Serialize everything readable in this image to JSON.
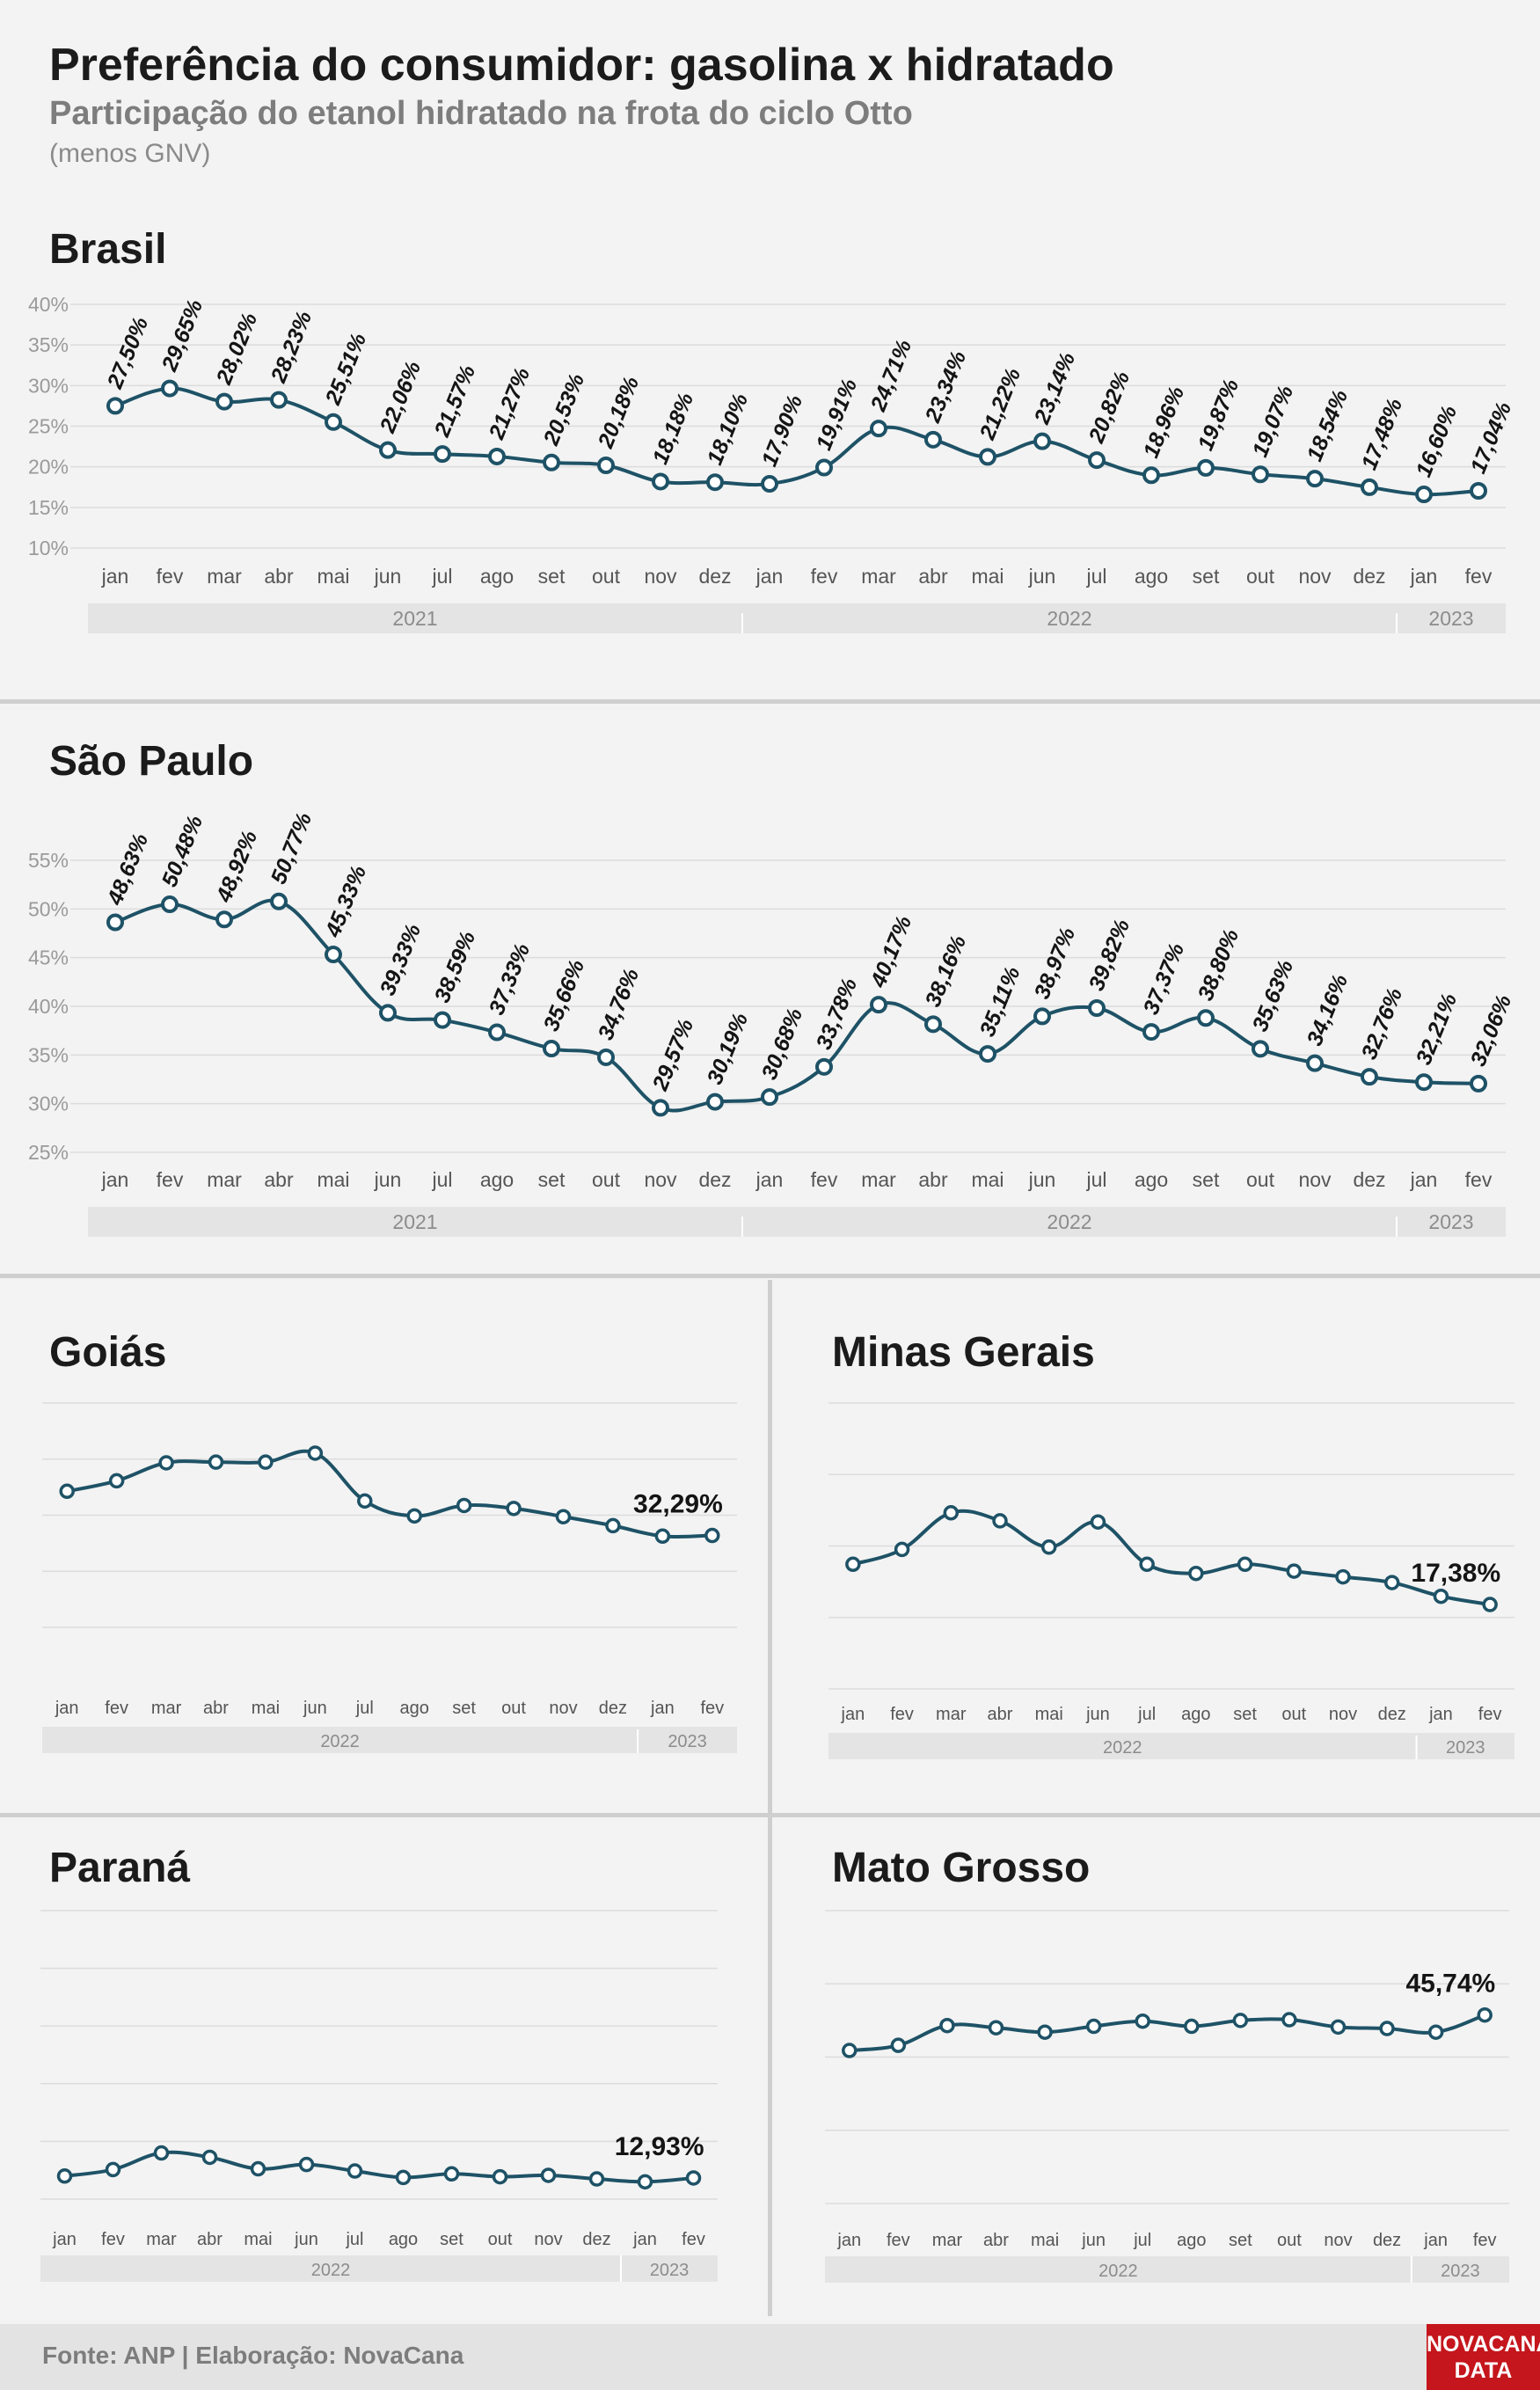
{
  "header": {
    "title": "Preferência do consumidor: gasolina x hidratado",
    "subtitle": "Participação do etanol hidratado na frota do ciclo Otto",
    "note": "(menos GNV)"
  },
  "footer": {
    "source": "Fonte: ANP | Elaboração: NovaCana",
    "logo_line1": "NOVACANA",
    "logo_line2": "DATA"
  },
  "colors": {
    "line": "#1e5266",
    "point_fill": "#ffffff",
    "grid": "#dcdcdc",
    "year_band": "#e4e4e4",
    "background": "#f3f3f3",
    "logo": "#c4161c"
  },
  "chart_data": [
    {
      "id": "brasil",
      "type": "line",
      "title": "Brasil",
      "x": [
        "jan",
        "fev",
        "mar",
        "abr",
        "mai",
        "jun",
        "jul",
        "ago",
        "set",
        "out",
        "nov",
        "dez",
        "jan",
        "fev",
        "mar",
        "abr",
        "mai",
        "jun",
        "jul",
        "ago",
        "set",
        "out",
        "nov",
        "dez",
        "jan",
        "fev"
      ],
      "years": [
        {
          "label": "2021",
          "count": 12
        },
        {
          "label": "2022",
          "count": 12
        },
        {
          "label": "2023",
          "count": 2
        }
      ],
      "values": [
        27.5,
        29.65,
        28.02,
        28.23,
        25.51,
        22.06,
        21.57,
        21.27,
        20.53,
        20.18,
        18.18,
        18.1,
        17.9,
        19.91,
        24.71,
        23.34,
        21.22,
        23.14,
        20.82,
        18.96,
        19.87,
        19.07,
        18.54,
        17.48,
        16.6,
        17.04
      ],
      "labels": [
        "27,50%",
        "29,65%",
        "28,02%",
        "28,23%",
        "25,51%",
        "22,06%",
        "21,57%",
        "21,27%",
        "20,53%",
        "20,18%",
        "18,18%",
        "18,10%",
        "17,90%",
        "19,91%",
        "24,71%",
        "23,34%",
        "21,22%",
        "23,14%",
        "20,82%",
        "18,96%",
        "19,87%",
        "19,07%",
        "18,54%",
        "17,48%",
        "16,60%",
        "17,04%"
      ],
      "yticks": [
        "10%",
        "15%",
        "20%",
        "25%",
        "30%",
        "35%",
        "40%"
      ],
      "ylim": [
        10,
        40
      ],
      "grid": true
    },
    {
      "id": "sao-paulo",
      "type": "line",
      "title": "São Paulo",
      "x": [
        "jan",
        "fev",
        "mar",
        "abr",
        "mai",
        "jun",
        "jul",
        "ago",
        "set",
        "out",
        "nov",
        "dez",
        "jan",
        "fev",
        "mar",
        "abr",
        "mai",
        "jun",
        "jul",
        "ago",
        "set",
        "out",
        "nov",
        "dez",
        "jan",
        "fev"
      ],
      "years": [
        {
          "label": "2021",
          "count": 12
        },
        {
          "label": "2022",
          "count": 12
        },
        {
          "label": "2023",
          "count": 2
        }
      ],
      "values": [
        48.63,
        50.48,
        48.92,
        50.77,
        45.33,
        39.33,
        38.59,
        37.33,
        35.66,
        34.76,
        29.57,
        30.19,
        30.68,
        33.78,
        40.17,
        38.16,
        35.11,
        38.97,
        39.82,
        37.37,
        38.8,
        35.63,
        34.16,
        32.76,
        32.21,
        32.06
      ],
      "labels": [
        "48,63%",
        "50,48%",
        "48,92%",
        "50,77%",
        "45,33%",
        "39,33%",
        "38,59%",
        "37,33%",
        "35,66%",
        "34,76%",
        "29,57%",
        "30,19%",
        "30,68%",
        "33,78%",
        "40,17%",
        "38,16%",
        "35,11%",
        "38,97%",
        "39,82%",
        "37,37%",
        "38,80%",
        "35,63%",
        "34,16%",
        "32,76%",
        "32,21%",
        "32,06%"
      ],
      "yticks": [
        "25%",
        "30%",
        "35%",
        "40%",
        "45%",
        "50%",
        "55%"
      ],
      "ylim": [
        25,
        55
      ],
      "grid": true
    },
    {
      "id": "goias",
      "type": "line",
      "title": "Goiás",
      "x": [
        "jan",
        "fev",
        "mar",
        "abr",
        "mai",
        "jun",
        "jul",
        "ago",
        "set",
        "out",
        "nov",
        "dez",
        "jan",
        "fev"
      ],
      "years": [
        {
          "label": "2022",
          "count": 12
        },
        {
          "label": "2023",
          "count": 2
        }
      ],
      "values": [
        38.2,
        39.6,
        42.0,
        42.1,
        42.1,
        43.3,
        36.9,
        34.9,
        36.3,
        35.9,
        34.8,
        33.6,
        32.2,
        32.29
      ],
      "last_label": "32,29%",
      "ylim": [
        20,
        50
      ],
      "grid": true
    },
    {
      "id": "minas-gerais",
      "type": "line",
      "title": "Minas Gerais",
      "x": [
        "jan",
        "fev",
        "mar",
        "abr",
        "mai",
        "jun",
        "jul",
        "ago",
        "set",
        "out",
        "nov",
        "dez",
        "jan",
        "fev"
      ],
      "years": [
        {
          "label": "2022",
          "count": 12
        },
        {
          "label": "2023",
          "count": 2
        }
      ],
      "values": [
        20.9,
        22.2,
        25.4,
        24.7,
        22.4,
        24.6,
        20.9,
        20.1,
        20.9,
        20.3,
        19.8,
        19.3,
        18.1,
        17.38
      ],
      "last_label": "17,38%",
      "ylim": [
        10,
        35
      ],
      "grid": true
    },
    {
      "id": "parana",
      "type": "line",
      "title": "Paraná",
      "x": [
        "jan",
        "fev",
        "mar",
        "abr",
        "mai",
        "jun",
        "jul",
        "ago",
        "set",
        "out",
        "nov",
        "dez",
        "jan",
        "fev"
      ],
      "years": [
        {
          "label": "2022",
          "count": 12
        },
        {
          "label": "2023",
          "count": 2
        }
      ],
      "values": [
        13.2,
        14.1,
        16.4,
        15.8,
        14.2,
        14.8,
        13.9,
        13.0,
        13.5,
        13.1,
        13.3,
        12.8,
        12.4,
        12.93
      ],
      "last_label": "12,93%",
      "ylim": [
        10,
        50
      ],
      "grid": true
    },
    {
      "id": "mato-grosso",
      "type": "line",
      "title": "Mato Grosso",
      "x": [
        "jan",
        "fev",
        "mar",
        "abr",
        "mai",
        "jun",
        "jul",
        "ago",
        "set",
        "out",
        "nov",
        "dez",
        "jan",
        "fev"
      ],
      "years": [
        {
          "label": "2022",
          "count": 12
        },
        {
          "label": "2023",
          "count": 2
        }
      ],
      "values": [
        40.9,
        41.6,
        44.3,
        44.0,
        43.4,
        44.2,
        44.9,
        44.2,
        45.0,
        45.1,
        44.1,
        43.9,
        43.4,
        45.74
      ],
      "last_label": "45,74%",
      "ylim": [
        20,
        60
      ],
      "grid": true
    }
  ]
}
